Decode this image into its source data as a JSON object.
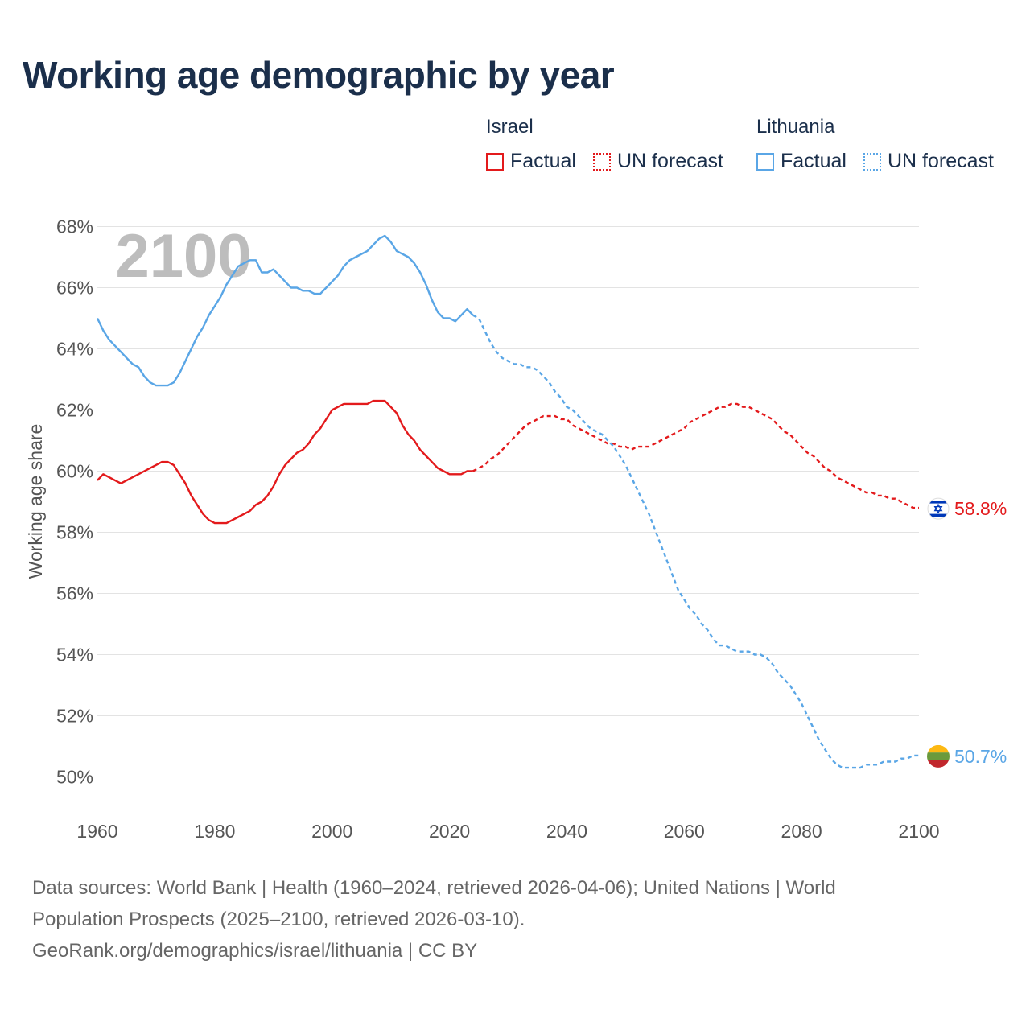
{
  "title": "Working age demographic by year",
  "legend": {
    "groups": [
      {
        "name": "Israel",
        "factual_label": "Factual",
        "forecast_label": "UN forecast",
        "color": "#e31a1c"
      },
      {
        "name": "Lithuania",
        "factual_label": "Factual",
        "forecast_label": "UN forecast",
        "color": "#5aa6e6"
      }
    ]
  },
  "year_watermark": "2100",
  "end_labels": {
    "israel": "58.8%",
    "lithuania": "50.7%"
  },
  "footer": {
    "line1": "Data sources: World Bank | Health (1960–2024, retrieved 2026-04-06); United Nations | World",
    "line2": "Population Prospects (2025–2100, retrieved 2026-03-10).",
    "line3": "GeoRank.org/demographics/israel/lithuania | CC BY"
  },
  "chart_data": {
    "type": "line",
    "title": "Working age demographic by year",
    "xlabel": "",
    "ylabel": "Working age share",
    "xlim": [
      1960,
      2100
    ],
    "ylim": [
      49,
      68.5
    ],
    "x_ticks": [
      1960,
      1980,
      2000,
      2020,
      2040,
      2060,
      2080,
      2100
    ],
    "y_ticks": [
      50,
      52,
      54,
      56,
      58,
      60,
      62,
      64,
      66,
      68
    ],
    "y_tick_labels": [
      "50%",
      "52%",
      "54%",
      "56%",
      "58%",
      "60%",
      "62%",
      "64%",
      "66%",
      "68%"
    ],
    "factual_end_year": 2024,
    "series": [
      {
        "name": "Israel",
        "color": "#e31a1c",
        "points": [
          [
            1960,
            59.7
          ],
          [
            1961,
            59.9
          ],
          [
            1962,
            59.8
          ],
          [
            1963,
            59.7
          ],
          [
            1964,
            59.6
          ],
          [
            1965,
            59.7
          ],
          [
            1966,
            59.8
          ],
          [
            1967,
            59.9
          ],
          [
            1968,
            60.0
          ],
          [
            1969,
            60.1
          ],
          [
            1970,
            60.2
          ],
          [
            1971,
            60.3
          ],
          [
            1972,
            60.3
          ],
          [
            1973,
            60.2
          ],
          [
            1974,
            59.9
          ],
          [
            1975,
            59.6
          ],
          [
            1976,
            59.2
          ],
          [
            1977,
            58.9
          ],
          [
            1978,
            58.6
          ],
          [
            1979,
            58.4
          ],
          [
            1980,
            58.3
          ],
          [
            1981,
            58.3
          ],
          [
            1982,
            58.3
          ],
          [
            1983,
            58.4
          ],
          [
            1984,
            58.5
          ],
          [
            1985,
            58.6
          ],
          [
            1986,
            58.7
          ],
          [
            1987,
            58.9
          ],
          [
            1988,
            59.0
          ],
          [
            1989,
            59.2
          ],
          [
            1990,
            59.5
          ],
          [
            1991,
            59.9
          ],
          [
            1992,
            60.2
          ],
          [
            1993,
            60.4
          ],
          [
            1994,
            60.6
          ],
          [
            1995,
            60.7
          ],
          [
            1996,
            60.9
          ],
          [
            1997,
            61.2
          ],
          [
            1998,
            61.4
          ],
          [
            1999,
            61.7
          ],
          [
            2000,
            62.0
          ],
          [
            2001,
            62.1
          ],
          [
            2002,
            62.2
          ],
          [
            2003,
            62.2
          ],
          [
            2004,
            62.2
          ],
          [
            2005,
            62.2
          ],
          [
            2006,
            62.2
          ],
          [
            2007,
            62.3
          ],
          [
            2008,
            62.3
          ],
          [
            2009,
            62.3
          ],
          [
            2010,
            62.1
          ],
          [
            2011,
            61.9
          ],
          [
            2012,
            61.5
          ],
          [
            2013,
            61.2
          ],
          [
            2014,
            61.0
          ],
          [
            2015,
            60.7
          ],
          [
            2016,
            60.5
          ],
          [
            2017,
            60.3
          ],
          [
            2018,
            60.1
          ],
          [
            2019,
            60.0
          ],
          [
            2020,
            59.9
          ],
          [
            2021,
            59.9
          ],
          [
            2022,
            59.9
          ],
          [
            2023,
            60.0
          ],
          [
            2024,
            60.0
          ],
          [
            2025,
            60.1
          ],
          [
            2026,
            60.2
          ],
          [
            2027,
            60.4
          ],
          [
            2028,
            60.5
          ],
          [
            2029,
            60.7
          ],
          [
            2030,
            60.9
          ],
          [
            2031,
            61.1
          ],
          [
            2032,
            61.3
          ],
          [
            2033,
            61.5
          ],
          [
            2034,
            61.6
          ],
          [
            2035,
            61.7
          ],
          [
            2036,
            61.8
          ],
          [
            2037,
            61.8
          ],
          [
            2038,
            61.8
          ],
          [
            2039,
            61.7
          ],
          [
            2040,
            61.7
          ],
          [
            2041,
            61.5
          ],
          [
            2042,
            61.4
          ],
          [
            2043,
            61.3
          ],
          [
            2044,
            61.2
          ],
          [
            2045,
            61.1
          ],
          [
            2046,
            61.0
          ],
          [
            2047,
            60.9
          ],
          [
            2048,
            60.9
          ],
          [
            2049,
            60.8
          ],
          [
            2050,
            60.8
          ],
          [
            2051,
            60.7
          ],
          [
            2052,
            60.8
          ],
          [
            2053,
            60.8
          ],
          [
            2054,
            60.8
          ],
          [
            2055,
            60.9
          ],
          [
            2056,
            61.0
          ],
          [
            2057,
            61.1
          ],
          [
            2058,
            61.2
          ],
          [
            2059,
            61.3
          ],
          [
            2060,
            61.4
          ],
          [
            2061,
            61.6
          ],
          [
            2062,
            61.7
          ],
          [
            2063,
            61.8
          ],
          [
            2064,
            61.9
          ],
          [
            2065,
            62.0
          ],
          [
            2066,
            62.1
          ],
          [
            2067,
            62.1
          ],
          [
            2068,
            62.2
          ],
          [
            2069,
            62.2
          ],
          [
            2070,
            62.1
          ],
          [
            2071,
            62.1
          ],
          [
            2072,
            62.0
          ],
          [
            2073,
            61.9
          ],
          [
            2074,
            61.8
          ],
          [
            2075,
            61.7
          ],
          [
            2076,
            61.5
          ],
          [
            2077,
            61.3
          ],
          [
            2078,
            61.2
          ],
          [
            2079,
            61.0
          ],
          [
            2080,
            60.8
          ],
          [
            2081,
            60.6
          ],
          [
            2082,
            60.5
          ],
          [
            2083,
            60.3
          ],
          [
            2084,
            60.1
          ],
          [
            2085,
            60.0
          ],
          [
            2086,
            59.8
          ],
          [
            2087,
            59.7
          ],
          [
            2088,
            59.6
          ],
          [
            2089,
            59.5
          ],
          [
            2090,
            59.4
          ],
          [
            2091,
            59.3
          ],
          [
            2092,
            59.3
          ],
          [
            2093,
            59.2
          ],
          [
            2094,
            59.2
          ],
          [
            2095,
            59.1
          ],
          [
            2096,
            59.1
          ],
          [
            2097,
            59.0
          ],
          [
            2098,
            58.9
          ],
          [
            2099,
            58.8
          ],
          [
            2100,
            58.8
          ]
        ]
      },
      {
        "name": "Lithuania",
        "color": "#5aa6e6",
        "points": [
          [
            1960,
            65.0
          ],
          [
            1961,
            64.6
          ],
          [
            1962,
            64.3
          ],
          [
            1963,
            64.1
          ],
          [
            1964,
            63.9
          ],
          [
            1965,
            63.7
          ],
          [
            1966,
            63.5
          ],
          [
            1967,
            63.4
          ],
          [
            1968,
            63.1
          ],
          [
            1969,
            62.9
          ],
          [
            1970,
            62.8
          ],
          [
            1971,
            62.8
          ],
          [
            1972,
            62.8
          ],
          [
            1973,
            62.9
          ],
          [
            1974,
            63.2
          ],
          [
            1975,
            63.6
          ],
          [
            1976,
            64.0
          ],
          [
            1977,
            64.4
          ],
          [
            1978,
            64.7
          ],
          [
            1979,
            65.1
          ],
          [
            1980,
            65.4
          ],
          [
            1981,
            65.7
          ],
          [
            1982,
            66.1
          ],
          [
            1983,
            66.4
          ],
          [
            1984,
            66.7
          ],
          [
            1985,
            66.8
          ],
          [
            1986,
            66.9
          ],
          [
            1987,
            66.9
          ],
          [
            1988,
            66.5
          ],
          [
            1989,
            66.5
          ],
          [
            1990,
            66.6
          ],
          [
            1991,
            66.4
          ],
          [
            1992,
            66.2
          ],
          [
            1993,
            66.0
          ],
          [
            1994,
            66.0
          ],
          [
            1995,
            65.9
          ],
          [
            1996,
            65.9
          ],
          [
            1997,
            65.8
          ],
          [
            1998,
            65.8
          ],
          [
            1999,
            66.0
          ],
          [
            2000,
            66.2
          ],
          [
            2001,
            66.4
          ],
          [
            2002,
            66.7
          ],
          [
            2003,
            66.9
          ],
          [
            2004,
            67.0
          ],
          [
            2005,
            67.1
          ],
          [
            2006,
            67.2
          ],
          [
            2007,
            67.4
          ],
          [
            2008,
            67.6
          ],
          [
            2009,
            67.7
          ],
          [
            2010,
            67.5
          ],
          [
            2011,
            67.2
          ],
          [
            2012,
            67.1
          ],
          [
            2013,
            67.0
          ],
          [
            2014,
            66.8
          ],
          [
            2015,
            66.5
          ],
          [
            2016,
            66.1
          ],
          [
            2017,
            65.6
          ],
          [
            2018,
            65.2
          ],
          [
            2019,
            65.0
          ],
          [
            2020,
            65.0
          ],
          [
            2021,
            64.9
          ],
          [
            2022,
            65.1
          ],
          [
            2023,
            65.3
          ],
          [
            2024,
            65.1
          ],
          [
            2025,
            65.0
          ],
          [
            2026,
            64.6
          ],
          [
            2027,
            64.2
          ],
          [
            2028,
            63.9
          ],
          [
            2029,
            63.7
          ],
          [
            2030,
            63.6
          ],
          [
            2031,
            63.5
          ],
          [
            2032,
            63.5
          ],
          [
            2033,
            63.4
          ],
          [
            2034,
            63.4
          ],
          [
            2035,
            63.3
          ],
          [
            2036,
            63.1
          ],
          [
            2037,
            62.9
          ],
          [
            2038,
            62.6
          ],
          [
            2039,
            62.4
          ],
          [
            2040,
            62.1
          ],
          [
            2041,
            62.0
          ],
          [
            2042,
            61.8
          ],
          [
            2043,
            61.6
          ],
          [
            2044,
            61.4
          ],
          [
            2045,
            61.3
          ],
          [
            2046,
            61.2
          ],
          [
            2047,
            61.0
          ],
          [
            2048,
            60.8
          ],
          [
            2049,
            60.5
          ],
          [
            2050,
            60.2
          ],
          [
            2051,
            59.8
          ],
          [
            2052,
            59.4
          ],
          [
            2053,
            59.0
          ],
          [
            2054,
            58.6
          ],
          [
            2055,
            58.1
          ],
          [
            2056,
            57.6
          ],
          [
            2057,
            57.1
          ],
          [
            2058,
            56.6
          ],
          [
            2059,
            56.1
          ],
          [
            2060,
            55.8
          ],
          [
            2061,
            55.5
          ],
          [
            2062,
            55.3
          ],
          [
            2063,
            55.0
          ],
          [
            2064,
            54.8
          ],
          [
            2065,
            54.5
          ],
          [
            2066,
            54.3
          ],
          [
            2067,
            54.3
          ],
          [
            2068,
            54.2
          ],
          [
            2069,
            54.1
          ],
          [
            2070,
            54.1
          ],
          [
            2071,
            54.1
          ],
          [
            2072,
            54.0
          ],
          [
            2073,
            54.0
          ],
          [
            2074,
            53.9
          ],
          [
            2075,
            53.7
          ],
          [
            2076,
            53.4
          ],
          [
            2077,
            53.2
          ],
          [
            2078,
            53.0
          ],
          [
            2079,
            52.7
          ],
          [
            2080,
            52.4
          ],
          [
            2081,
            52.0
          ],
          [
            2082,
            51.6
          ],
          [
            2083,
            51.2
          ],
          [
            2084,
            50.9
          ],
          [
            2085,
            50.6
          ],
          [
            2086,
            50.4
          ],
          [
            2087,
            50.3
          ],
          [
            2088,
            50.3
          ],
          [
            2089,
            50.3
          ],
          [
            2090,
            50.3
          ],
          [
            2091,
            50.4
          ],
          [
            2092,
            50.4
          ],
          [
            2093,
            50.4
          ],
          [
            2094,
            50.5
          ],
          [
            2095,
            50.5
          ],
          [
            2096,
            50.5
          ],
          [
            2097,
            50.6
          ],
          [
            2098,
            50.6
          ],
          [
            2099,
            50.7
          ],
          [
            2100,
            50.7
          ]
        ]
      }
    ]
  }
}
